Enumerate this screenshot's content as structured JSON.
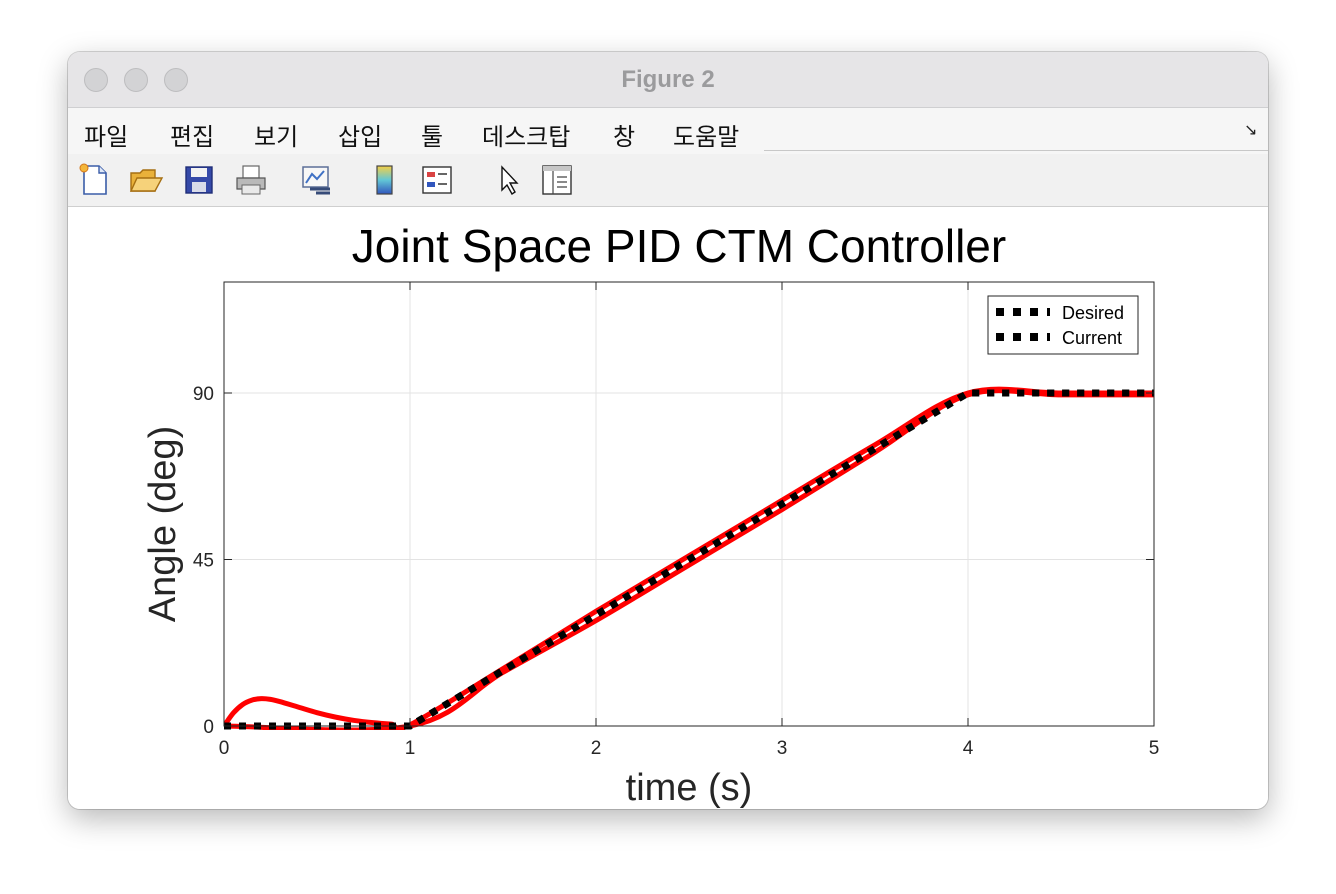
{
  "window": {
    "title": "Figure 2"
  },
  "menu": {
    "items": [
      "파일",
      "편집",
      "보기",
      "삽입",
      "툴",
      "데스크탑",
      "창",
      "도움말"
    ]
  },
  "toolbar": {
    "icons": [
      "new-figure-icon",
      "open-file-icon",
      "save-icon",
      "print-icon",
      "link-plot-icon",
      "colorbar-icon",
      "legend-icon",
      "pointer-icon",
      "property-inspector-icon"
    ]
  },
  "chart_data": {
    "type": "line",
    "title": "Joint Space PID CTM Controller",
    "xlabel": "time (s)",
    "ylabel": "Angle (deg)",
    "xlim": [
      0,
      5
    ],
    "ylim": [
      0,
      120
    ],
    "xticks": [
      "0",
      "1",
      "2",
      "3",
      "4",
      "5"
    ],
    "yticks": [
      "0",
      "45",
      "90"
    ],
    "grid": true,
    "legend_position": "top-right",
    "series": [
      {
        "name": "Desired",
        "style": "dotted",
        "color": "#000000",
        "x": [
          0,
          0.5,
          1.0,
          1.5,
          2.0,
          2.5,
          3.0,
          3.5,
          4.0,
          4.5,
          5.0
        ],
        "y": [
          0,
          0,
          0,
          15,
          30,
          45,
          60,
          75,
          90,
          90,
          90
        ]
      },
      {
        "name": "Current",
        "style": "dotted",
        "color": "#000000",
        "x": [
          0,
          0.5,
          1.0,
          1.5,
          2.0,
          2.5,
          3.0,
          3.5,
          4.0,
          4.5,
          5.0
        ],
        "y": [
          0,
          0,
          0,
          15,
          30,
          45,
          60,
          75,
          90,
          90,
          90
        ]
      },
      {
        "name": "",
        "style": "solid",
        "color": "#ff0000",
        "x": [
          0,
          0.05,
          0.1,
          0.15,
          0.2,
          0.25,
          0.3,
          0.4,
          0.5,
          0.6,
          0.7,
          0.8,
          0.9,
          1.0,
          1.5,
          2.0,
          2.5,
          3.0,
          3.5,
          4.0,
          4.5,
          5.0
        ],
        "y": [
          0,
          3.5,
          5.8,
          7,
          7.4,
          7.2,
          6.6,
          5.1,
          3.6,
          2.4,
          1.5,
          0.9,
          0.5,
          0.3,
          15.5,
          31,
          46,
          61,
          76,
          90,
          90,
          90
        ]
      },
      {
        "name": "",
        "style": "solid",
        "color": "#ff0000",
        "x": [
          0,
          1.0,
          1.5,
          2.0,
          2.5,
          3.0,
          3.5,
          4.0,
          4.5,
          5.0
        ],
        "y": [
          0,
          0,
          14.5,
          28.5,
          43.5,
          58.5,
          74,
          89.5,
          89.5,
          89.5
        ]
      }
    ]
  }
}
